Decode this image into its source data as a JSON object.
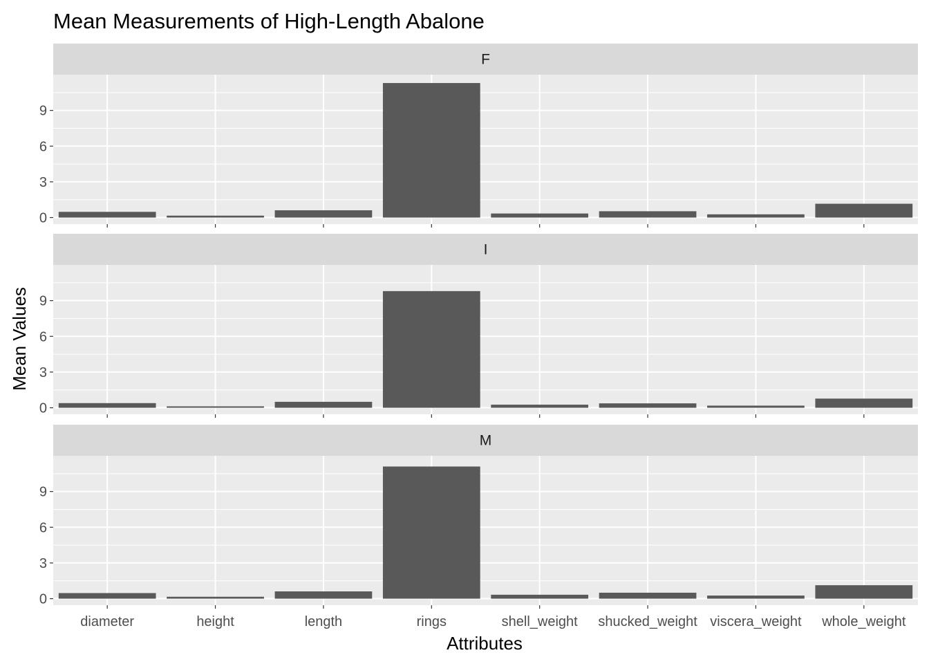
{
  "chart_data": {
    "type": "bar",
    "title": "Mean Measurements of High-Length Abalone",
    "xlabel": "Attributes",
    "ylabel": "Mean Values",
    "categories": [
      "diameter",
      "height",
      "length",
      "rings",
      "shell_weight",
      "shucked_weight",
      "viscera_weight",
      "whole_weight"
    ],
    "yticks": [
      "0",
      "3",
      "6",
      "9"
    ],
    "ylim": [
      -0.55,
      12.0
    ],
    "grid": true,
    "facets": [
      {
        "label": "F",
        "values": [
          0.48,
          0.16,
          0.61,
          11.3,
          0.34,
          0.53,
          0.27,
          1.16
        ]
      },
      {
        "label": "I",
        "values": [
          0.39,
          0.12,
          0.5,
          9.8,
          0.26,
          0.37,
          0.18,
          0.77
        ]
      },
      {
        "label": "M",
        "values": [
          0.47,
          0.16,
          0.61,
          11.1,
          0.33,
          0.5,
          0.26,
          1.13
        ]
      }
    ],
    "colors": {
      "bar": "#595959",
      "panel_bg": "#EBEBEB",
      "strip_bg": "#D9D9D9",
      "grid": "#FFFFFF",
      "tick": "#333333"
    }
  }
}
